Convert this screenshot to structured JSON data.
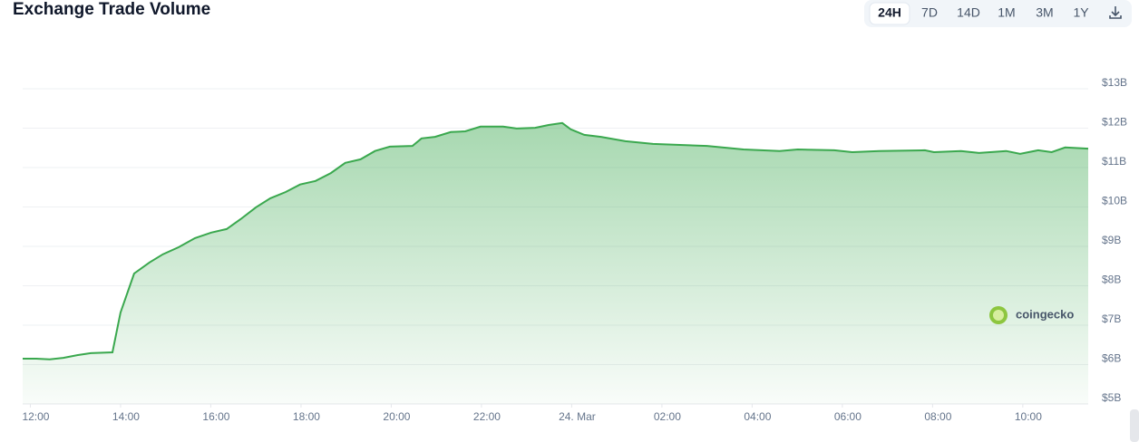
{
  "chart_data": {
    "type": "line",
    "title": "Exchange Trade Volume",
    "ranges": [
      "24H",
      "7D",
      "14D",
      "1M",
      "3M",
      "1Y"
    ],
    "active_range": "24H",
    "watermark": "coingecko",
    "series": [
      {
        "color": "#3aa84e",
        "x": [
          11.83,
          12.13,
          12.43,
          12.73,
          13.04,
          13.34,
          13.82,
          14.0,
          14.3,
          14.64,
          14.94,
          15.29,
          15.65,
          16.01,
          16.35,
          16.66,
          17.0,
          17.32,
          17.66,
          17.98,
          18.32,
          18.66,
          18.98,
          19.32,
          19.64,
          19.97,
          20.47,
          20.67,
          20.97,
          21.32,
          21.64,
          21.98,
          22.48,
          22.78,
          23.19,
          23.49,
          23.79,
          23.98,
          24.28,
          24.65,
          25.19,
          25.8,
          27.0,
          27.81,
          28.61,
          29.01,
          29.82,
          30.22,
          30.82,
          31.83,
          32.03,
          32.63,
          33.03,
          33.63,
          33.94,
          34.34,
          34.64,
          34.94,
          35.45
        ],
        "values": [
          6.15,
          6.15,
          6.13,
          6.17,
          6.24,
          6.29,
          6.31,
          7.32,
          8.31,
          8.59,
          8.8,
          8.98,
          9.21,
          9.35,
          9.44,
          9.69,
          9.99,
          10.22,
          10.38,
          10.57,
          10.66,
          10.86,
          11.12,
          11.21,
          11.42,
          11.53,
          11.55,
          11.74,
          11.78,
          11.9,
          11.92,
          12.04,
          12.04,
          11.99,
          12.01,
          12.08,
          12.13,
          11.97,
          11.83,
          11.78,
          11.67,
          11.6,
          11.55,
          11.46,
          11.42,
          11.46,
          11.44,
          11.39,
          11.42,
          11.44,
          11.39,
          11.42,
          11.37,
          11.42,
          11.35,
          11.44,
          11.39,
          11.51,
          11.48
        ]
      }
    ],
    "xlim": [
      11.83,
      35.45
    ],
    "xticks": [
      {
        "value": 12,
        "label": "12:00"
      },
      {
        "value": 14,
        "label": "14:00"
      },
      {
        "value": 16,
        "label": "16:00"
      },
      {
        "value": 18,
        "label": "18:00"
      },
      {
        "value": 20,
        "label": "20:00"
      },
      {
        "value": 22,
        "label": "22:00"
      },
      {
        "value": 24,
        "label": "24. Mar"
      },
      {
        "value": 26,
        "label": "02:00"
      },
      {
        "value": 28,
        "label": "04:00"
      },
      {
        "value": 30,
        "label": "06:00"
      },
      {
        "value": 32,
        "label": "08:00"
      },
      {
        "value": 34,
        "label": "10:00"
      }
    ],
    "ylim": [
      5,
      13
    ],
    "yticks": [
      {
        "value": 5,
        "label": "$5B"
      },
      {
        "value": 6,
        "label": "$6B"
      },
      {
        "value": 7,
        "label": "$7B"
      },
      {
        "value": 8,
        "label": "$8B"
      },
      {
        "value": 9,
        "label": "$9B"
      },
      {
        "value": 10,
        "label": "$10B"
      },
      {
        "value": 11,
        "label": "$11B"
      },
      {
        "value": 12,
        "label": "$12B"
      },
      {
        "value": 13,
        "label": "$13B"
      }
    ],
    "grid": true
  }
}
